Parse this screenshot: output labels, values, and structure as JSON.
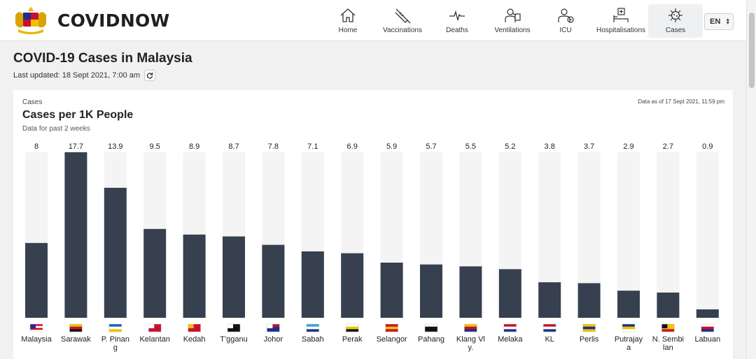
{
  "app": {
    "brand": "COVIDNOW"
  },
  "nav": {
    "items": [
      {
        "label": "Home",
        "icon": "home-icon"
      },
      {
        "label": "Vaccinations",
        "icon": "syringe-icon"
      },
      {
        "label": "Deaths",
        "icon": "pulse-icon"
      },
      {
        "label": "Ventilations",
        "icon": "ventilator-icon"
      },
      {
        "label": "ICU",
        "icon": "icu-icon"
      },
      {
        "label": "Hospitalisations",
        "icon": "hospital-bed-icon"
      },
      {
        "label": "Cases",
        "icon": "virus-icon"
      }
    ],
    "active": "Cases",
    "language": "EN"
  },
  "page": {
    "title": "COVID-19 Cases in Malaysia",
    "updated": "Last updated: 18 Sept 2021, 7:00 am"
  },
  "card": {
    "kicker": "Cases",
    "title": "Cases per 1K People",
    "subtitle": "Data for past 2 weeks",
    "as_of": "Data as of 17 Sept 2021, 11:59 pm"
  },
  "chart_data": {
    "type": "bar",
    "title": "Cases per 1K People",
    "categories": [
      "Malaysia",
      "Sarawak",
      "P. Pinang",
      "Kelantan",
      "Kedah",
      "T'gganu",
      "Johor",
      "Sabah",
      "Perak",
      "Selangor",
      "Pahang",
      "Klang Valley",
      "Melaka",
      "KL",
      "Perlis",
      "Putrajaya",
      "N. Sembilan",
      "Labuan"
    ],
    "category_labels": [
      [
        "Malaysia"
      ],
      [
        "Sarawak"
      ],
      [
        "P. Pinan",
        "g"
      ],
      [
        "Kelantan"
      ],
      [
        "Kedah"
      ],
      [
        "T'gganu"
      ],
      [
        "Johor"
      ],
      [
        "Sabah"
      ],
      [
        "Perak"
      ],
      [
        "Selangor"
      ],
      [
        "Pahang"
      ],
      [
        "Klang Vl",
        "y."
      ],
      [
        "Melaka"
      ],
      [
        "KL"
      ],
      [
        "Perlis"
      ],
      [
        "Putrajay",
        "a"
      ],
      [
        "N. Sembi",
        "lan"
      ],
      [
        "Labuan"
      ]
    ],
    "value_labels": [
      "8",
      "17.7",
      "13.9",
      "9.5",
      "8.9",
      "8.7",
      "7.8",
      "7.1",
      "6.9",
      "5.9",
      "5.7",
      "5.5",
      "5.2",
      "3.8",
      "3.7",
      "2.9",
      "2.7",
      "0.9"
    ],
    "values": [
      8,
      17.7,
      13.9,
      9.5,
      8.9,
      8.7,
      7.8,
      7.1,
      6.9,
      5.9,
      5.7,
      5.5,
      5.2,
      3.8,
      3.7,
      2.9,
      2.7,
      0.9
    ],
    "ylim": [
      0,
      17.7
    ],
    "grid": false,
    "colors": {
      "bar": "#36404f",
      "track": "#f4f4f4"
    }
  },
  "colors": {
    "page_bg": "#f1f1f1",
    "bar": "#36404f",
    "active_nav": "#eef0f2"
  }
}
